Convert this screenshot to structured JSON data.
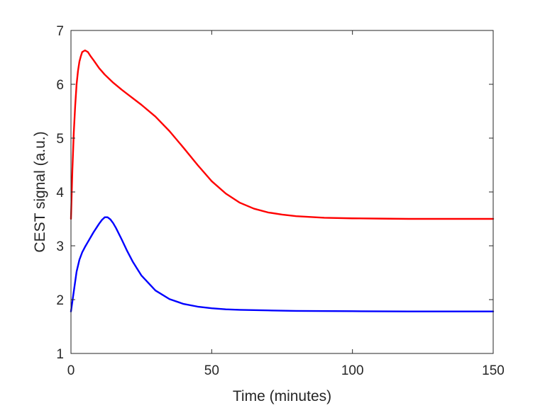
{
  "chart_data": {
    "type": "line",
    "title": "",
    "xlabel": "Time (minutes)",
    "ylabel": "CEST signal (a.u.)",
    "xlim": [
      0,
      150
    ],
    "ylim": [
      1,
      7
    ],
    "x_ticks": [
      0,
      50,
      100,
      150
    ],
    "y_ticks": [
      1,
      2,
      3,
      4,
      5,
      6,
      7
    ],
    "grid": false,
    "box": true,
    "series": [
      {
        "color": "#ff0000",
        "x": [
          0,
          0.5,
          1,
          1.5,
          2,
          2.5,
          3,
          3.5,
          4,
          5,
          6,
          7,
          8,
          10,
          12,
          15,
          18,
          20,
          25,
          30,
          35,
          40,
          45,
          50,
          55,
          60,
          65,
          70,
          75,
          80,
          90,
          100,
          110,
          120,
          130,
          140,
          150
        ],
        "y": [
          3.5,
          4.4,
          5.1,
          5.6,
          6.0,
          6.25,
          6.42,
          6.52,
          6.6,
          6.63,
          6.6,
          6.52,
          6.45,
          6.3,
          6.18,
          6.03,
          5.9,
          5.82,
          5.62,
          5.4,
          5.13,
          4.82,
          4.5,
          4.2,
          3.97,
          3.8,
          3.69,
          3.62,
          3.58,
          3.55,
          3.52,
          3.51,
          3.505,
          3.5,
          3.5,
          3.5,
          3.5
        ]
      },
      {
        "color": "#0000ff",
        "x": [
          0,
          1,
          2,
          3,
          4,
          5,
          6,
          7,
          8,
          9,
          10,
          11,
          12,
          13,
          14,
          15,
          16,
          18,
          20,
          22,
          25,
          30,
          35,
          40,
          45,
          50,
          55,
          60,
          70,
          80,
          100,
          120,
          150
        ],
        "y": [
          1.78,
          2.15,
          2.52,
          2.74,
          2.88,
          2.98,
          3.07,
          3.16,
          3.25,
          3.33,
          3.41,
          3.48,
          3.53,
          3.53,
          3.49,
          3.42,
          3.33,
          3.12,
          2.9,
          2.7,
          2.45,
          2.17,
          2.01,
          1.92,
          1.87,
          1.84,
          1.82,
          1.81,
          1.8,
          1.79,
          1.785,
          1.78,
          1.78
        ]
      }
    ]
  }
}
